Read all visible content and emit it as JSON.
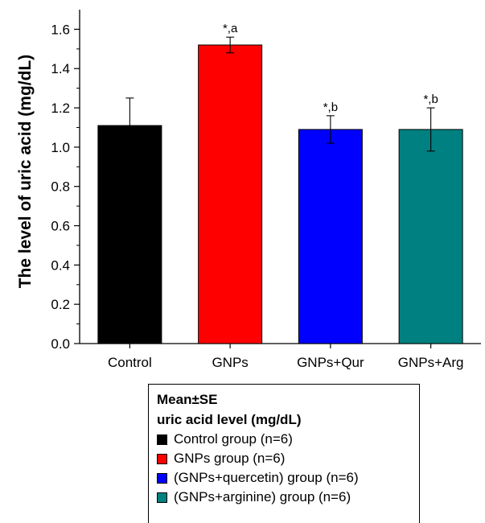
{
  "chart_data": {
    "type": "bar",
    "title": "",
    "xlabel": "",
    "ylabel": "The level of uric acid (mg/dL)",
    "ylim": [
      0,
      1.7
    ],
    "yticks": [
      "0.0",
      "0.2",
      "0.4",
      "0.6",
      "0.8",
      "1.0",
      "1.2",
      "1.4",
      "1.6"
    ],
    "categories": [
      "Control",
      "GNPs",
      "GNPs+Qur",
      "GNPs+Arg"
    ],
    "values": [
      1.11,
      1.52,
      1.09,
      1.09
    ],
    "errors": [
      0.14,
      0.04,
      0.07,
      0.11
    ],
    "error_direction": [
      "up",
      "both",
      "both",
      "both"
    ],
    "colors": [
      "#000000",
      "#ff0000",
      "#0000ff",
      "#008080"
    ],
    "annotations": [
      "",
      "*,a",
      "*,b",
      "*,b"
    ],
    "grid": false,
    "legend": {
      "position": "bottom",
      "title_lines": [
        "Mean±SE",
        "uric acid level (mg/dL)"
      ],
      "entries": [
        {
          "label": "Control group (n=6)",
          "color": "#000000"
        },
        {
          "label": "GNPs group (n=6)",
          "color": "#ff0000"
        },
        {
          "label": "(GNPs+quercetin) group (n=6)",
          "color": "#0000ff"
        },
        {
          "label": "(GNPs+arginine) group (n=6)",
          "color": "#008080"
        }
      ]
    }
  }
}
